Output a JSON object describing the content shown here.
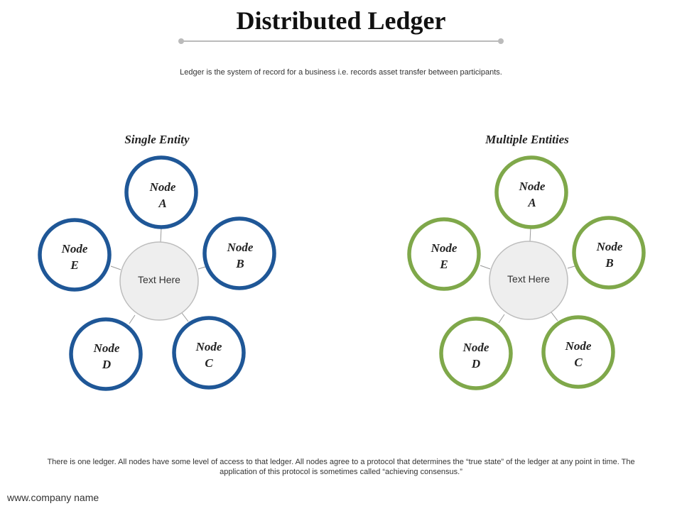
{
  "title": "Distributed Ledger",
  "subtitle": "Ledger is the system of record for a business i.e. records asset transfer between participants.",
  "colors": {
    "blue": "#1f5797",
    "green": "#7fa84a",
    "hub_fill": "#eeeeee",
    "hub_stroke": "#bdbdbd",
    "line": "#999999"
  },
  "left": {
    "heading": "Single Entity",
    "hub": "Text Here",
    "nodes": [
      {
        "name": "Node",
        "letter": "A"
      },
      {
        "name": "Node",
        "letter": "B"
      },
      {
        "name": "Node",
        "letter": "C"
      },
      {
        "name": "Node",
        "letter": "D"
      },
      {
        "name": "Node",
        "letter": "E"
      }
    ]
  },
  "right": {
    "heading": "Multiple Entities",
    "hub": "Text Here",
    "nodes": [
      {
        "name": "Node",
        "letter": "A"
      },
      {
        "name": "Node",
        "letter": "B"
      },
      {
        "name": "Node",
        "letter": "C"
      },
      {
        "name": "Node",
        "letter": "D"
      },
      {
        "name": "Node",
        "letter": "E"
      }
    ]
  },
  "footer": {
    "note": "There is one ledger. All nodes have some level of access to that ledger. All nodes agree to a protocol that determines the “true state” of the ledger at any point in time. The application of this protocol is sometimes called “achieving consensus.”",
    "url": "www.company name"
  }
}
